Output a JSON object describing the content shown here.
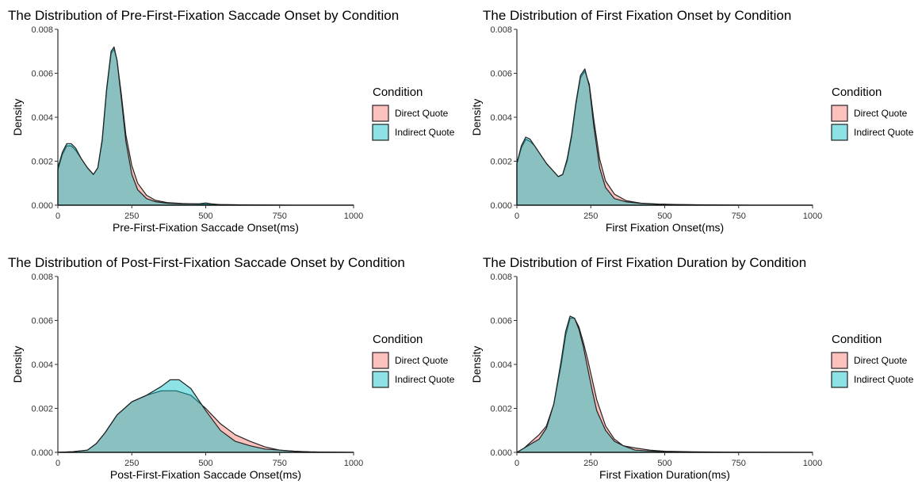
{
  "colors": {
    "direct": "#F8766D",
    "indirect": "#00BFC4",
    "outline": "#222222",
    "fill_opacity": 0.45
  },
  "chart_data": [
    {
      "type": "area",
      "title": "The Distribution of Pre-First-Fixation Saccade Onset by Condition",
      "xlabel": "Pre-First-Fixation Saccade Onset(ms)",
      "ylabel": "Density",
      "xlim": [
        0,
        1000
      ],
      "ylim": [
        0,
        0.008
      ],
      "xticks": [
        0,
        250,
        500,
        750,
        1000
      ],
      "xtick_labels": [
        "0",
        "250",
        "500",
        "750",
        "1000"
      ],
      "yticks": [
        0,
        0.002,
        0.004,
        0.006,
        0.008
      ],
      "ytick_labels": [
        "0.000",
        "0.002",
        "0.004",
        "0.006",
        "0.008"
      ],
      "grid": false,
      "legend": {
        "title": "Condition",
        "placement": "right",
        "entries": [
          "Direct Quote",
          "Indirect Quote"
        ]
      },
      "series": [
        {
          "name": "Direct Quote",
          "x": [
            0,
            15,
            30,
            45,
            60,
            80,
            100,
            120,
            135,
            150,
            165,
            180,
            190,
            200,
            215,
            230,
            250,
            270,
            300,
            330,
            370,
            420,
            480,
            550,
            650,
            800,
            1000
          ],
          "y": [
            0.0016,
            0.0023,
            0.0027,
            0.0027,
            0.0025,
            0.0021,
            0.0017,
            0.0014,
            0.0017,
            0.0029,
            0.0052,
            0.0069,
            0.0071,
            0.0066,
            0.005,
            0.0032,
            0.0018,
            0.001,
            0.00045,
            0.00022,
            0.00012,
            8e-05,
            5e-05,
            3e-05,
            1e-05,
            0,
            0
          ]
        },
        {
          "name": "Indirect Quote",
          "x": [
            0,
            15,
            30,
            45,
            60,
            80,
            100,
            120,
            135,
            150,
            165,
            180,
            190,
            200,
            215,
            230,
            250,
            270,
            300,
            330,
            370,
            420,
            480,
            500,
            520,
            550,
            650,
            800,
            1000
          ],
          "y": [
            0.0017,
            0.0024,
            0.0028,
            0.0028,
            0.0026,
            0.0021,
            0.0017,
            0.0014,
            0.0017,
            0.003,
            0.0053,
            0.007,
            0.0072,
            0.0066,
            0.0048,
            0.0029,
            0.0014,
            0.0007,
            0.0003,
            0.00016,
            9e-05,
            6e-05,
            7e-05,
            0.0001,
            6e-05,
            2e-05,
            1e-05,
            0,
            0
          ]
        }
      ]
    },
    {
      "type": "area",
      "title": "The Distribution of First Fixation Onset by Condition",
      "xlabel": "First Fixation Onset(ms)",
      "ylabel": "Density",
      "xlim": [
        0,
        1000
      ],
      "ylim": [
        0,
        0.008
      ],
      "xticks": [
        0,
        250,
        500,
        750,
        1000
      ],
      "xtick_labels": [
        "0",
        "250",
        "500",
        "750",
        "1000"
      ],
      "yticks": [
        0,
        0.002,
        0.004,
        0.006,
        0.008
      ],
      "ytick_labels": [
        "0.000",
        "0.002",
        "0.004",
        "0.006",
        "0.008"
      ],
      "grid": false,
      "legend": {
        "title": "Condition",
        "placement": "right",
        "entries": [
          "Direct Quote",
          "Indirect Quote"
        ]
      },
      "series": [
        {
          "name": "Direct Quote",
          "x": [
            0,
            15,
            30,
            45,
            60,
            80,
            100,
            120,
            140,
            155,
            170,
            185,
            200,
            215,
            230,
            245,
            260,
            280,
            300,
            330,
            370,
            420,
            480,
            550,
            650,
            800,
            1000
          ],
          "y": [
            0.0019,
            0.0026,
            0.003,
            0.0029,
            0.0027,
            0.0023,
            0.0019,
            0.0016,
            0.0013,
            0.0014,
            0.002,
            0.0031,
            0.0046,
            0.0058,
            0.0061,
            0.0055,
            0.0039,
            0.0021,
            0.0011,
            0.0005,
            0.0002,
            9e-05,
            5e-05,
            3e-05,
            1e-05,
            0,
            0
          ]
        },
        {
          "name": "Indirect Quote",
          "x": [
            0,
            15,
            30,
            45,
            60,
            80,
            100,
            120,
            140,
            155,
            170,
            185,
            200,
            215,
            230,
            245,
            260,
            280,
            300,
            330,
            370,
            420,
            480,
            550,
            650,
            800,
            1000
          ],
          "y": [
            0.0019,
            0.0027,
            0.0031,
            0.003,
            0.0027,
            0.0023,
            0.0019,
            0.0016,
            0.0013,
            0.0014,
            0.0021,
            0.0032,
            0.0047,
            0.0059,
            0.0062,
            0.0054,
            0.0036,
            0.0017,
            0.0008,
            0.0003,
            0.00015,
            8e-05,
            4e-05,
            2e-05,
            1e-05,
            0,
            0
          ]
        }
      ]
    },
    {
      "type": "area",
      "title": "The Distribution of Post-First-Fixation Saccade Onset by Condition",
      "xlabel": "Post-First-Fixation Saccade Onset(ms)",
      "ylabel": "Density",
      "xlim": [
        0,
        1000
      ],
      "ylim": [
        0,
        0.008
      ],
      "xticks": [
        0,
        250,
        500,
        750,
        1000
      ],
      "xtick_labels": [
        "0",
        "250",
        "500",
        "750",
        "1000"
      ],
      "yticks": [
        0,
        0.002,
        0.004,
        0.006,
        0.008
      ],
      "ytick_labels": [
        "0.000",
        "0.002",
        "0.004",
        "0.006",
        "0.008"
      ],
      "grid": false,
      "legend": {
        "title": "Condition",
        "placement": "right",
        "entries": [
          "Direct Quote",
          "Indirect Quote"
        ]
      },
      "series": [
        {
          "name": "Direct Quote",
          "x": [
            0,
            50,
            100,
            130,
            160,
            200,
            250,
            300,
            350,
            400,
            450,
            500,
            550,
            600,
            650,
            700,
            750,
            800,
            850,
            900,
            1000
          ],
          "y": [
            0,
            3e-05,
            0.0001,
            0.0004,
            0.0009,
            0.0017,
            0.0023,
            0.0026,
            0.0028,
            0.0028,
            0.0026,
            0.002,
            0.0013,
            0.0008,
            0.0005,
            0.00025,
            0.0001,
            5e-05,
            2e-05,
            1e-05,
            0
          ]
        },
        {
          "name": "Indirect Quote",
          "x": [
            0,
            50,
            100,
            130,
            160,
            200,
            250,
            300,
            350,
            380,
            410,
            450,
            500,
            550,
            600,
            650,
            700,
            750,
            800,
            850,
            900,
            1000
          ],
          "y": [
            0,
            3e-05,
            0.0001,
            0.0004,
            0.0009,
            0.0017,
            0.0023,
            0.0026,
            0.003,
            0.0033,
            0.0033,
            0.0029,
            0.0019,
            0.001,
            0.0005,
            0.0003,
            0.00015,
            0.0001,
            5e-05,
            2e-05,
            1e-05,
            0
          ]
        }
      ]
    },
    {
      "type": "area",
      "title": "The Distribution of First Fixation Duration by Condition",
      "xlabel": "First Fixation Duration(ms)",
      "ylabel": "Density",
      "xlim": [
        0,
        1000
      ],
      "ylim": [
        0,
        0.008
      ],
      "xticks": [
        0,
        250,
        500,
        750,
        1000
      ],
      "xtick_labels": [
        "0",
        "250",
        "500",
        "750",
        "1000"
      ],
      "yticks": [
        0,
        0.002,
        0.004,
        0.006,
        0.008
      ],
      "ytick_labels": [
        "0.000",
        "0.002",
        "0.004",
        "0.006",
        "0.008"
      ],
      "grid": false,
      "legend": {
        "title": "Condition",
        "placement": "right",
        "entries": [
          "Direct Quote",
          "Indirect Quote"
        ]
      },
      "series": [
        {
          "name": "Direct Quote",
          "x": [
            0,
            25,
            50,
            75,
            100,
            125,
            150,
            165,
            180,
            195,
            210,
            225,
            240,
            255,
            270,
            300,
            330,
            360,
            400,
            450,
            500,
            600,
            700,
            1000
          ],
          "y": [
            0,
            0.0002,
            0.0005,
            0.0008,
            0.0012,
            0.0022,
            0.004,
            0.0053,
            0.0061,
            0.0061,
            0.0057,
            0.005,
            0.0042,
            0.0033,
            0.0024,
            0.0012,
            0.0006,
            0.0003,
            0.0002,
            0.0001,
            5e-05,
            2e-05,
            1e-05,
            0
          ]
        },
        {
          "name": "Indirect Quote",
          "x": [
            0,
            25,
            50,
            75,
            100,
            125,
            150,
            165,
            180,
            195,
            210,
            225,
            240,
            255,
            270,
            300,
            330,
            360,
            400,
            450,
            500,
            600,
            700,
            1000
          ],
          "y": [
            0,
            0.0002,
            0.0004,
            0.0006,
            0.0011,
            0.0022,
            0.0042,
            0.0055,
            0.0062,
            0.0061,
            0.0056,
            0.0048,
            0.0038,
            0.0028,
            0.0019,
            0.001,
            0.0005,
            0.0003,
            0.0001,
            6e-05,
            3e-05,
            1e-05,
            0,
            0
          ]
        }
      ]
    }
  ]
}
